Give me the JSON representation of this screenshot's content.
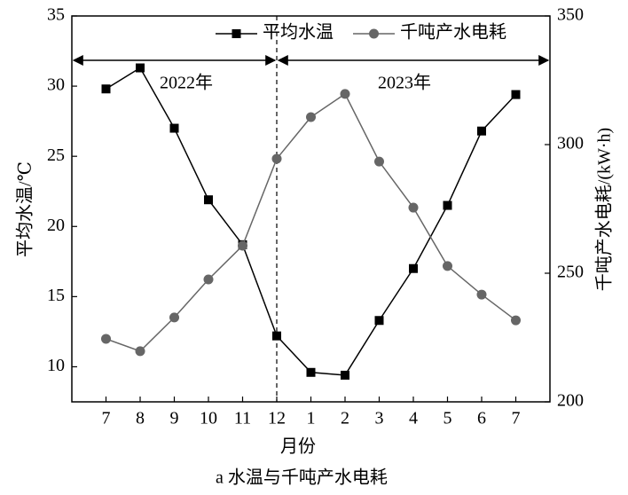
{
  "chart_data": {
    "type": "line",
    "caption": "a 水温与千吨产水电耗",
    "x_label": "月份",
    "y_label": "平均水温/℃",
    "y2_label": "千吨产水电耗/(kW·h)",
    "annotations": [
      "2022年",
      "2023年"
    ],
    "categories": [
      "7",
      "8",
      "9",
      "10",
      "11",
      "12",
      "1",
      "2",
      "3",
      "4",
      "5",
      "6",
      "7"
    ],
    "series": [
      {
        "name": "平均水温",
        "color": "#000000",
        "marker": "square",
        "values": [
          29.8,
          31.3,
          27.0,
          21.9,
          18.7,
          12.2,
          9.6,
          9.4,
          13.3,
          17.0,
          21.5,
          26.8,
          29.4
        ]
      },
      {
        "name": "千吨产水电耗",
        "color": "#666666",
        "marker": "circle",
        "axis": "y2",
        "values": [
          224.5,
          219.7,
          232.8,
          247.6,
          260.7,
          294.5,
          310.7,
          319.7,
          293.4,
          275.5,
          252.8,
          241.7,
          231.7
        ]
      }
    ],
    "ylim": [
      7.5,
      35
    ],
    "yticks": [
      10,
      15,
      20,
      25,
      30,
      35
    ],
    "y2lim": [
      200,
      350
    ],
    "y2ticks": [
      200,
      250,
      300,
      350
    ],
    "legend": "upper right"
  }
}
